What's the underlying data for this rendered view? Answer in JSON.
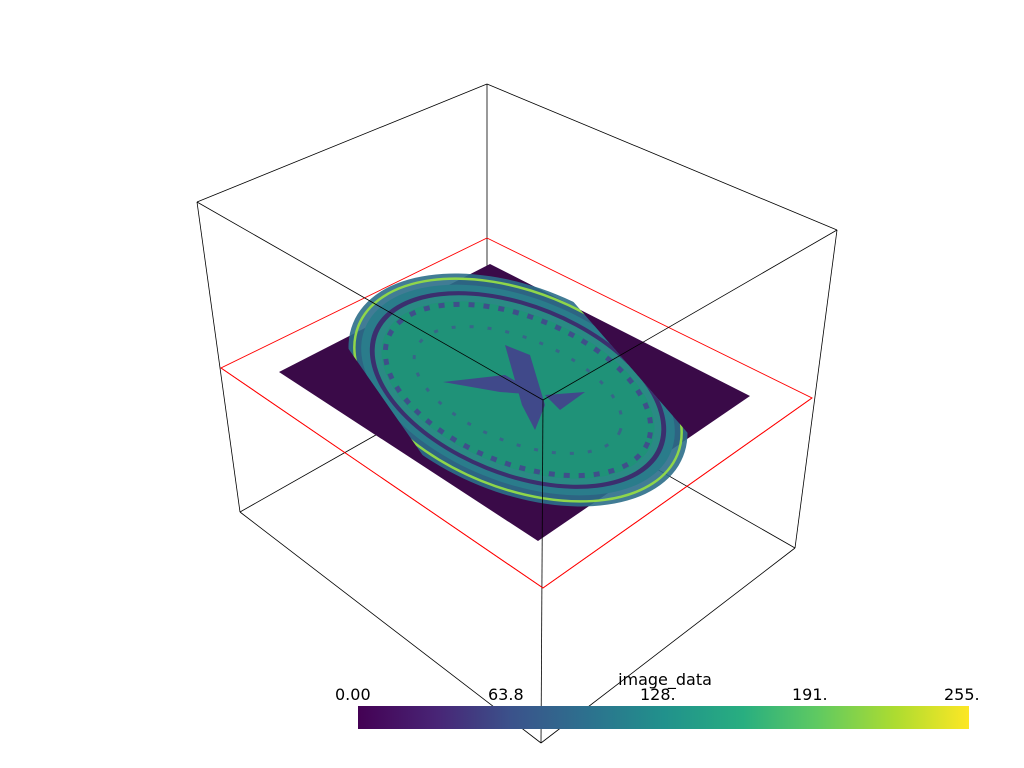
{
  "scene": {
    "background": "#ffffff",
    "bounding_box_color": "#000000",
    "slice_outline_color": "#ff0000",
    "colormap": "viridis"
  },
  "scalar_bar": {
    "title": "image_data",
    "range": [
      0,
      255
    ],
    "tick_labels": [
      "0.00",
      "63.8",
      "128.",
      "191.",
      "255."
    ],
    "colors": [
      "#440154",
      "#3b528b",
      "#21918c",
      "#5ec962",
      "#fde725"
    ]
  }
}
